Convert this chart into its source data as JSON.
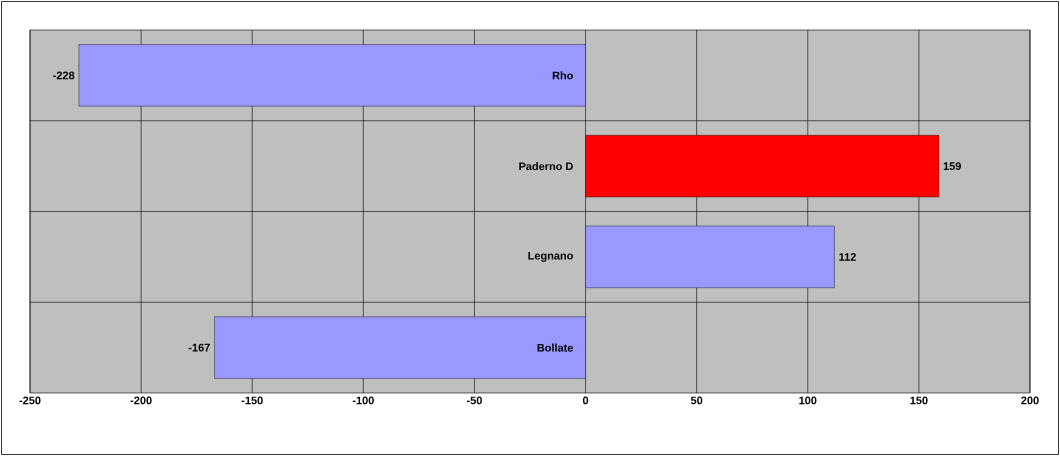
{
  "chart_data": {
    "type": "bar",
    "orientation": "horizontal",
    "categories": [
      "Rho",
      "Paderno D",
      "Legnano",
      "Bollate"
    ],
    "values": [
      -228,
      159,
      112,
      -167
    ],
    "colors": [
      "#9999ff",
      "#ff0000",
      "#9999ff",
      "#9999ff"
    ],
    "xlim": [
      -250,
      200
    ],
    "xticks": [
      -250,
      -200,
      -150,
      -100,
      -50,
      0,
      50,
      100,
      150,
      200
    ],
    "grid": true,
    "data_labels": true
  }
}
